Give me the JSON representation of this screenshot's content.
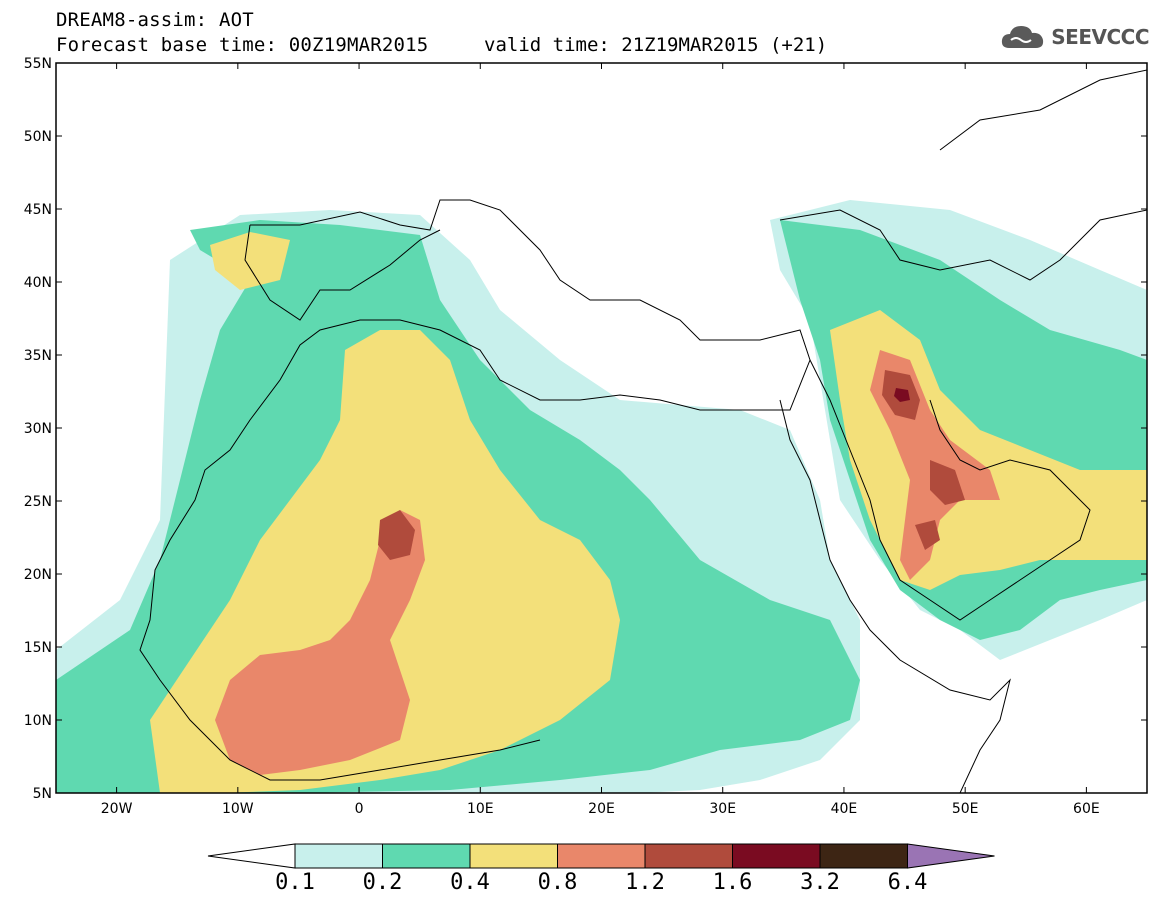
{
  "header": {
    "title_line1": "DREAM8-assim: AOT",
    "title_line2": "Forecast base time: 00Z19MAR2015",
    "title_line2b": "valid time: 21Z19MAR2015 (+21)",
    "logo_text": "SEEVCCC"
  },
  "map": {
    "lon_labels": [
      "20W",
      "10W",
      "0",
      "10E",
      "20E",
      "30E",
      "40E",
      "50E",
      "60E"
    ],
    "lat_labels": [
      "55N",
      "50N",
      "45N",
      "40N",
      "35N",
      "30N",
      "25N",
      "20N",
      "15N",
      "10N",
      "5N"
    ],
    "lon_range": [
      -25,
      65
    ],
    "lat_range": [
      5,
      55
    ]
  },
  "colorbar": {
    "labels": [
      "0.1",
      "0.2",
      "0.4",
      "0.8",
      "1.2",
      "1.6",
      "3.2",
      "6.4"
    ],
    "colors": [
      "#ffffff",
      "#c8f0ec",
      "#5fd9b0",
      "#f3e07a",
      "#e9876a",
      "#b04b3c",
      "#7a0b21",
      "#3d2514",
      "#9a74b4"
    ]
  }
}
